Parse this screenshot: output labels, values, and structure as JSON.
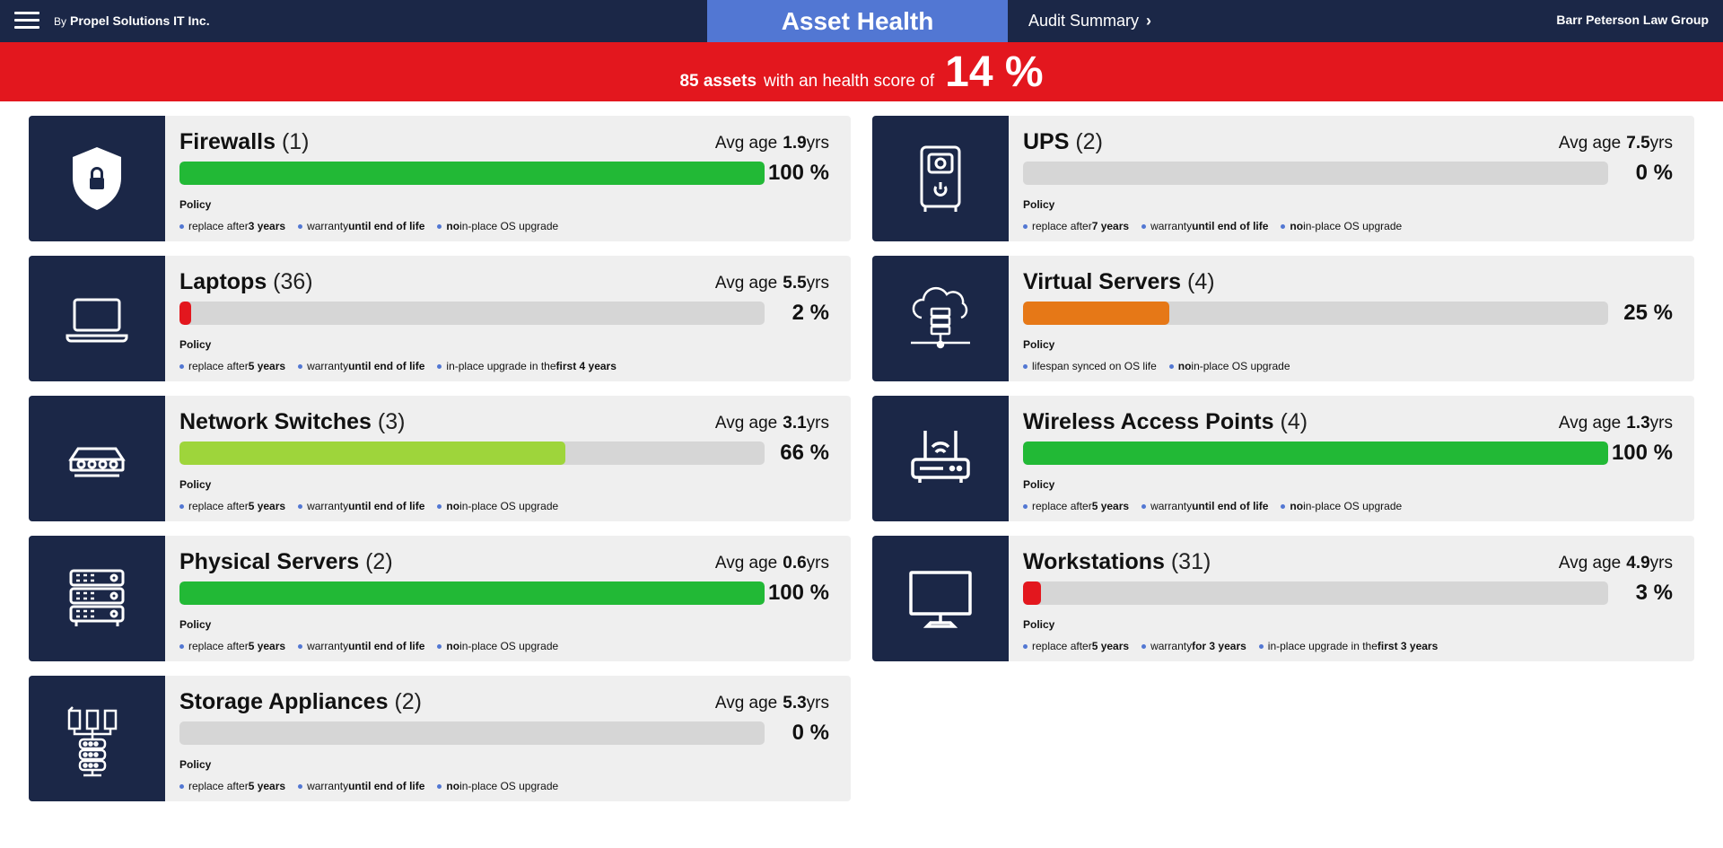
{
  "header": {
    "by": "By",
    "company": "Propel Solutions IT Inc.",
    "active_tab": "Asset Health",
    "audit_tab": "Audit Summary",
    "client": "Barr Peterson Law Group"
  },
  "banner": {
    "count": "85 assets",
    "text": "with an health score of",
    "score": "14 %"
  },
  "colors": {
    "navy": "#1b2747",
    "accent_blue": "#5277d3",
    "banner_red": "#e3171e",
    "bar_green": "#22b936",
    "bar_lime": "#9ed53b",
    "bar_orange": "#e67817",
    "bar_red": "#e3171e",
    "bar_track": "#d6d6d6"
  },
  "policy_label": "Policy",
  "avg_age_label": "Avg age",
  "assets": [
    {
      "name": "Firewalls",
      "count": "(1)",
      "avg_age": "1.9",
      "unit": "yrs",
      "health": 100,
      "health_text": "100 %",
      "bar_color": "#22b936",
      "icon": "shield-lock-icon",
      "policy": [
        [
          "replace after ",
          "3 years",
          ""
        ],
        [
          "warranty ",
          "until end of life",
          ""
        ],
        [
          "",
          "no",
          " in-place OS upgrade"
        ]
      ]
    },
    {
      "name": "UPS",
      "count": "(2)",
      "avg_age": "7.5",
      "unit": "yrs",
      "health": 0,
      "health_text": "0 %",
      "bar_color": "#22b936",
      "icon": "ups-icon",
      "policy": [
        [
          "replace after ",
          "7 years",
          ""
        ],
        [
          "warranty ",
          "until end of life",
          ""
        ],
        [
          "",
          "no",
          " in-place OS upgrade"
        ]
      ]
    },
    {
      "name": "Laptops",
      "count": "(36)",
      "avg_age": "5.5",
      "unit": "yrs",
      "health": 2,
      "health_text": "2 %",
      "bar_color": "#e3171e",
      "icon": "laptop-icon",
      "policy": [
        [
          "replace after ",
          "5 years",
          ""
        ],
        [
          "warranty ",
          "until end of life",
          ""
        ],
        [
          "in-place upgrade in the ",
          "first 4 years",
          ""
        ]
      ]
    },
    {
      "name": "Virtual Servers",
      "count": "(4)",
      "avg_age": "",
      "unit": "",
      "health": 25,
      "health_text": "25 %",
      "bar_color": "#e67817",
      "icon": "cloud-server-icon",
      "policy": [
        [
          "lifespan synced on OS life",
          "",
          ""
        ],
        [
          "",
          "no",
          " in-place OS upgrade"
        ]
      ]
    },
    {
      "name": "Network Switches",
      "count": "(3)",
      "avg_age": "3.1",
      "unit": "yrs",
      "health": 66,
      "health_text": "66 %",
      "bar_color": "#9ed53b",
      "icon": "network-switch-icon",
      "policy": [
        [
          "replace after ",
          "5 years",
          ""
        ],
        [
          "warranty ",
          "until end of life",
          ""
        ],
        [
          "",
          "no",
          " in-place OS upgrade"
        ]
      ]
    },
    {
      "name": "Wireless Access Points",
      "count": "(4)",
      "avg_age": "1.3",
      "unit": "yrs",
      "health": 100,
      "health_text": "100 %",
      "bar_color": "#22b936",
      "icon": "wireless-router-icon",
      "policy": [
        [
          "replace after ",
          "5 years",
          ""
        ],
        [
          "warranty ",
          "until end of life",
          ""
        ],
        [
          "",
          "no",
          " in-place OS upgrade"
        ]
      ]
    },
    {
      "name": "Physical Servers",
      "count": "(2)",
      "avg_age": "0.6",
      "unit": "yrs",
      "health": 100,
      "health_text": "100 %",
      "bar_color": "#22b936",
      "icon": "server-rack-icon",
      "policy": [
        [
          "replace after ",
          "5 years",
          ""
        ],
        [
          "warranty ",
          "until end of life",
          ""
        ],
        [
          "",
          "no",
          " in-place OS upgrade"
        ]
      ]
    },
    {
      "name": "Workstations",
      "count": "(31)",
      "avg_age": "4.9",
      "unit": "yrs",
      "health": 3,
      "health_text": "3 %",
      "bar_color": "#e3171e",
      "icon": "monitor-icon",
      "policy": [
        [
          "replace after ",
          "5 years",
          ""
        ],
        [
          "warranty ",
          "for 3 years",
          ""
        ],
        [
          "in-place upgrade in the ",
          "first 3 years",
          ""
        ]
      ]
    },
    {
      "name": "Storage Appliances",
      "count": "(2)",
      "avg_age": "5.3",
      "unit": "yrs",
      "health": 0,
      "health_text": "0 %",
      "bar_color": "#22b936",
      "icon": "storage-appliance-icon",
      "policy": [
        [
          "replace after ",
          "5 years",
          ""
        ],
        [
          "warranty ",
          "until end of life",
          ""
        ],
        [
          "",
          "no",
          " in-place OS upgrade"
        ]
      ]
    }
  ]
}
